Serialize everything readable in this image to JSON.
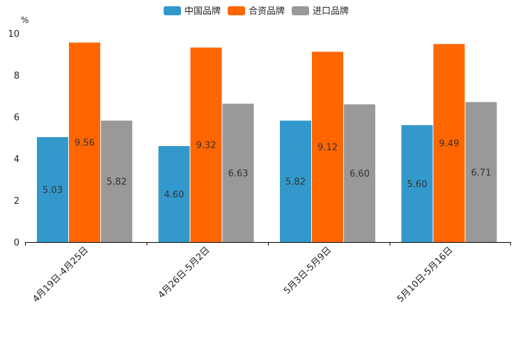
{
  "chart_data": {
    "type": "bar",
    "title": "",
    "unit": "%",
    "xlabel": "",
    "ylabel": "%",
    "ylim": [
      0,
      10
    ],
    "yticks": [
      0,
      2,
      4,
      6,
      8,
      10
    ],
    "grid": false,
    "legend_position": "top-center",
    "categories": [
      "4月19日-4月25日",
      "4月26日-5月2日",
      "5月3日-5月9日",
      "5月10日-5月16日"
    ],
    "series": [
      {
        "name": "中国品牌",
        "color": "#3399cc",
        "values": [
          5.03,
          4.6,
          5.82,
          5.6
        ],
        "labels": [
          "5.03",
          "4.60",
          "5.82",
          "5.60"
        ]
      },
      {
        "name": "合资品牌",
        "color": "#ff6600",
        "values": [
          9.56,
          9.32,
          9.12,
          9.49
        ],
        "labels": [
          "9.56",
          "9.32",
          "9.12",
          "9.49"
        ]
      },
      {
        "name": "进口品牌",
        "color": "#999999",
        "values": [
          5.82,
          6.63,
          6.6,
          6.71
        ],
        "labels": [
          "5.82",
          "6.63",
          "6.60",
          "6.71"
        ]
      }
    ]
  }
}
